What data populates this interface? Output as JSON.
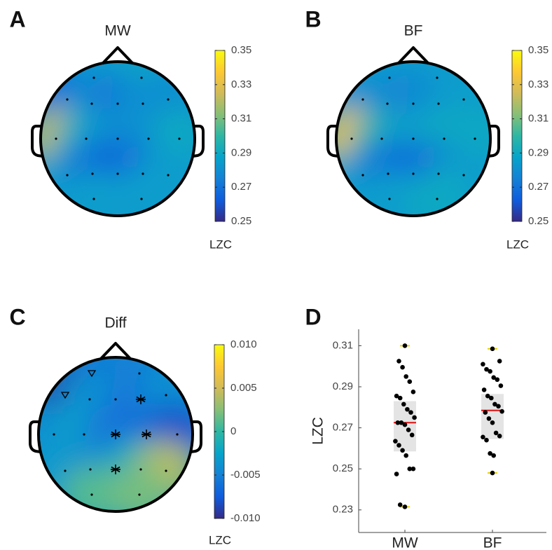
{
  "chart_data": [
    {
      "type": "topomap",
      "panel": "A",
      "title": "MW",
      "colorbar_label": "LZC",
      "colormap": "parula",
      "clim": [
        0.25,
        0.35
      ],
      "cticks": [
        0.25,
        0.27,
        0.29,
        0.31,
        0.33,
        0.35
      ],
      "values": [
        0.285,
        0.29,
        0.265,
        0.28,
        0.27,
        0.28,
        0.28,
        0.322,
        0.29,
        0.28,
        0.28,
        0.29,
        0.285,
        0.27,
        0.262,
        0.27,
        0.285,
        0.285,
        0.285
      ]
    },
    {
      "type": "topomap",
      "panel": "B",
      "title": "BF",
      "colorbar_label": "LZC",
      "colormap": "parula",
      "clim": [
        0.25,
        0.35
      ],
      "cticks": [
        0.25,
        0.27,
        0.29,
        0.31,
        0.33,
        0.35
      ],
      "values": [
        0.285,
        0.285,
        0.28,
        0.28,
        0.275,
        0.28,
        0.285,
        0.332,
        0.295,
        0.285,
        0.29,
        0.29,
        0.285,
        0.27,
        0.265,
        0.27,
        0.285,
        0.285,
        0.29
      ]
    },
    {
      "type": "topomap",
      "panel": "C",
      "title": "Diff",
      "colorbar_label": "LZC",
      "colormap": "parula",
      "clim": [
        -0.01,
        0.01
      ],
      "cticks": [
        {
          "value": -0.01,
          "label": "-0.010"
        },
        {
          "value": -0.005,
          "label": "-0.005"
        },
        0,
        {
          "value": 0.005,
          "label": "0.005"
        },
        {
          "value": 0.01,
          "label": "0.010"
        }
      ],
      "values": [
        -0.006,
        -0.005,
        -0.009,
        -0.004,
        -0.004,
        -0.006,
        -0.004,
        -0.004,
        -0.003,
        -0.006,
        -0.006,
        -0.008,
        -0.003,
        -0.004,
        -0.004,
        -0.001,
        0.004,
        0.001,
        0.002
      ],
      "markers": [
        "triangle",
        null,
        "triangle",
        null,
        null,
        "star",
        null,
        null,
        null,
        "star",
        "star",
        null,
        null,
        null,
        "star",
        null,
        null,
        null,
        null
      ]
    },
    {
      "type": "strip",
      "panel": "D",
      "ylabel": "LZC",
      "categories": [
        "MW",
        "BF"
      ],
      "ylim": [
        0.219,
        0.318
      ],
      "yticks": [
        0.23,
        0.25,
        0.27,
        0.29,
        0.31
      ],
      "point_color": "#000000",
      "mean_color": "#e01010",
      "range_color": "#e4e4e4",
      "extreme_color": "#e8d400",
      "groups": [
        {
          "values": [
            0.31,
            0.3025,
            0.2995,
            0.295,
            0.2925,
            0.2875,
            0.2855,
            0.2845,
            0.2815,
            0.279,
            0.2775,
            0.275,
            0.2725,
            0.2725,
            0.2715,
            0.269,
            0.2665,
            0.2635,
            0.2615,
            0.259,
            0.2565,
            0.25,
            0.25,
            0.2475,
            0.2325,
            0.2315
          ],
          "mean": 0.2725,
          "range": [
            0.2585,
            0.283
          ]
        },
        {
          "values": [
            0.3085,
            0.3025,
            0.301,
            0.2985,
            0.2975,
            0.2945,
            0.2935,
            0.2905,
            0.2885,
            0.2855,
            0.2845,
            0.2815,
            0.2805,
            0.278,
            0.2775,
            0.2745,
            0.2725,
            0.2675,
            0.266,
            0.2655,
            0.264,
            0.2575,
            0.2565,
            0.248
          ],
          "mean": 0.2785,
          "range": [
            0.2645,
            0.2865
          ]
        }
      ]
    }
  ]
}
